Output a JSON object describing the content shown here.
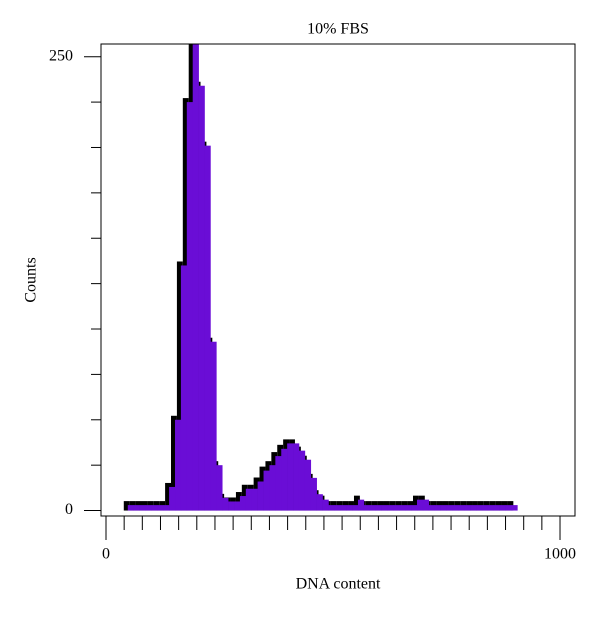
{
  "chart_data": {
    "type": "histogram",
    "title": "10% FBS",
    "xlabel": "DNA content",
    "ylabel": "Counts",
    "bins": [
      48,
      61,
      74,
      87,
      100,
      113,
      126,
      139,
      152,
      165,
      178,
      191,
      204,
      217,
      230,
      243,
      256,
      269,
      282,
      295,
      308,
      321,
      334,
      347,
      360,
      373,
      386,
      399,
      412,
      425,
      438,
      451,
      464,
      477,
      490,
      503,
      516,
      529,
      542,
      555,
      568,
      581,
      594,
      607,
      620,
      633,
      646,
      659,
      672,
      685,
      698,
      711,
      724,
      737,
      750,
      763,
      776,
      789,
      802,
      815,
      828,
      841,
      854,
      867,
      880,
      893,
      906
    ],
    "values": [
      3,
      3,
      3,
      3,
      3,
      3,
      3,
      13,
      50,
      135,
      225,
      260,
      234,
      201,
      93,
      25,
      7,
      5,
      5,
      8,
      12,
      12,
      16,
      22,
      25,
      30,
      34,
      37,
      37,
      33,
      28,
      18,
      9,
      6,
      3,
      3,
      3,
      3,
      3,
      6,
      3,
      3,
      3,
      3,
      3,
      3,
      3,
      3,
      3,
      6,
      6,
      3,
      3,
      3,
      3,
      3,
      3,
      3,
      3,
      3,
      3,
      3,
      3,
      3,
      3,
      3
    ],
    "color": "#6a0dd6",
    "outline_color": "#000000",
    "xlim": [
      -11,
      1033
    ],
    "ylim": [
      -3,
      257
    ],
    "xticks": [
      0,
      1000
    ],
    "xminorticks": [
      40,
      80,
      120,
      160,
      200,
      240,
      280,
      320,
      360,
      400,
      440,
      480,
      520,
      560,
      600,
      640,
      680,
      720,
      760,
      800,
      840,
      880,
      920,
      960
    ],
    "yticks": [
      0,
      250
    ],
    "yminorticks": [
      25,
      50,
      75,
      100,
      125,
      150,
      175,
      200,
      225
    ]
  }
}
